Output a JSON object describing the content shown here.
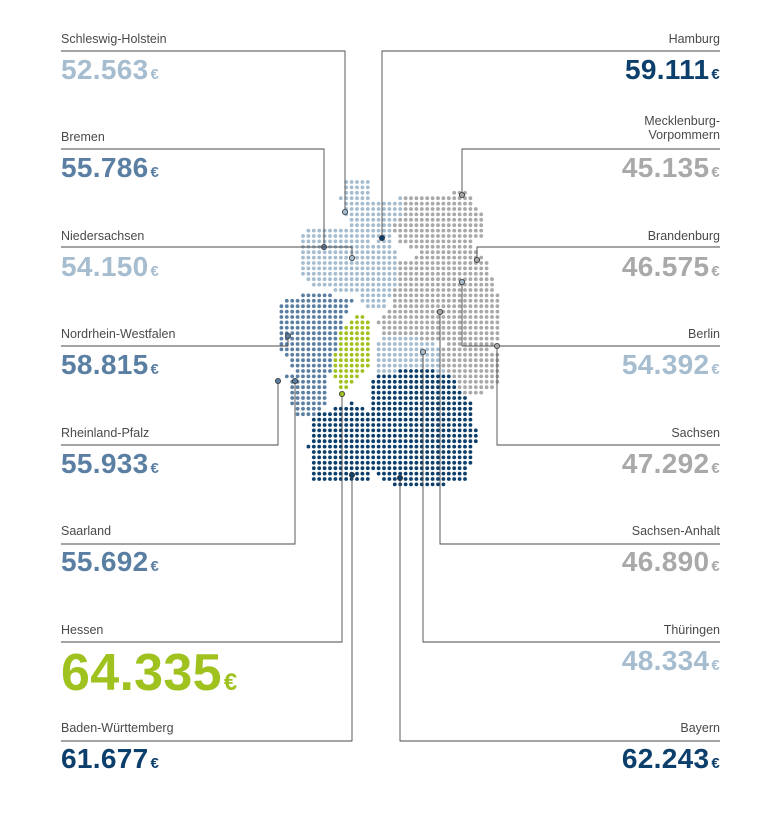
{
  "chart_data": {
    "type": "map",
    "currency_symbol": "€",
    "colors": {
      "light": "#a6bdd0",
      "mid": "#5a7fa3",
      "dark": "#0c3f6b",
      "grey": "#a9a9a9",
      "highlight": "#9fc21f"
    },
    "states": [
      {
        "name": "Schleswig-Holstein",
        "value": "52.563",
        "color": "#a6bdd0",
        "side": "left"
      },
      {
        "name": "Bremen",
        "value": "55.786",
        "color": "#5a7fa3",
        "side": "left"
      },
      {
        "name": "Niedersachsen",
        "value": "54.150",
        "color": "#a6bdd0",
        "side": "left"
      },
      {
        "name": "Nordrhein-Westfalen",
        "value": "58.815",
        "color": "#5a7fa3",
        "side": "left"
      },
      {
        "name": "Rheinland-Pfalz",
        "value": "55.933",
        "color": "#5a7fa3",
        "side": "left"
      },
      {
        "name": "Saarland",
        "value": "55.692",
        "color": "#5a7fa3",
        "side": "left"
      },
      {
        "name": "Hessen",
        "value": "64.335",
        "color": "#9fc21f",
        "side": "left",
        "emphasis": true
      },
      {
        "name": "Baden-Württemberg",
        "value": "61.677",
        "color": "#0c3f6b",
        "side": "left"
      },
      {
        "name": "Hamburg",
        "value": "59.111",
        "color": "#0c3f6b",
        "side": "right"
      },
      {
        "name": "Mecklenburg-\nVorpommern",
        "value": "45.135",
        "color": "#a9a9a9",
        "side": "right"
      },
      {
        "name": "Brandenburg",
        "value": "46.575",
        "color": "#a9a9a9",
        "side": "right"
      },
      {
        "name": "Berlin",
        "value": "54.392",
        "color": "#a6bdd0",
        "side": "right"
      },
      {
        "name": "Sachsen",
        "value": "47.292",
        "color": "#a9a9a9",
        "side": "right"
      },
      {
        "name": "Sachsen-Anhalt",
        "value": "46.890",
        "color": "#a9a9a9",
        "side": "right"
      },
      {
        "name": "Thüringen",
        "value": "48.334",
        "color": "#a6bdd0",
        "side": "right"
      },
      {
        "name": "Bayern",
        "value": "62.243",
        "color": "#0c3f6b",
        "side": "right"
      }
    ]
  }
}
